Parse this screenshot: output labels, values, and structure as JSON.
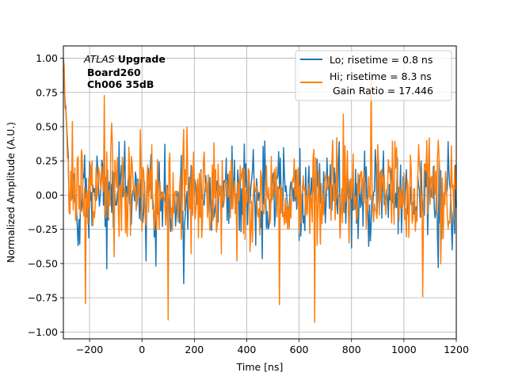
{
  "chart_data": {
    "type": "line",
    "title": "",
    "xlabel": "Time [ns]",
    "ylabel": "Normalized Amplitude (A.U.)",
    "xlim": [
      -300,
      1200
    ],
    "ylim": [
      -1.05,
      1.09
    ],
    "grid": true,
    "xticks": [
      -200,
      0,
      200,
      400,
      600,
      800,
      1000,
      1200
    ],
    "xtick_labels": [
      "−200",
      "0",
      "200",
      "400",
      "600",
      "800",
      "1000",
      "1200"
    ],
    "yticks": [
      -1.0,
      -0.75,
      -0.5,
      -0.25,
      0.0,
      0.25,
      0.5,
      0.75,
      1.0
    ],
    "ytick_labels": [
      "−1.00",
      "−0.75",
      "−0.50",
      "−0.25",
      "0.00",
      "0.25",
      "0.50",
      "0.75",
      "1.00"
    ],
    "legend_position": "top-right",
    "annotation": {
      "experiment": "ATLAS",
      "tag": "Upgrade",
      "board": "Board260",
      "channel": "Ch006 35dB"
    },
    "series": [
      {
        "name": "Lo; risetime = 0.8 ns",
        "color": "#1f77b4",
        "x_start": -300,
        "x_step": 3.125,
        "noise_std": 0.16,
        "peak_max": 0.92,
        "peak_min": -0.93
      },
      {
        "name": "Hi; risetime = 8.3 ns",
        "extra": " Gain Ratio = 17.446",
        "color": "#ff7f0e",
        "x_start": -300,
        "x_step": 3.125,
        "noise_std": 0.18,
        "peak_max": 1.0,
        "peak_min": -0.93
      }
    ]
  }
}
